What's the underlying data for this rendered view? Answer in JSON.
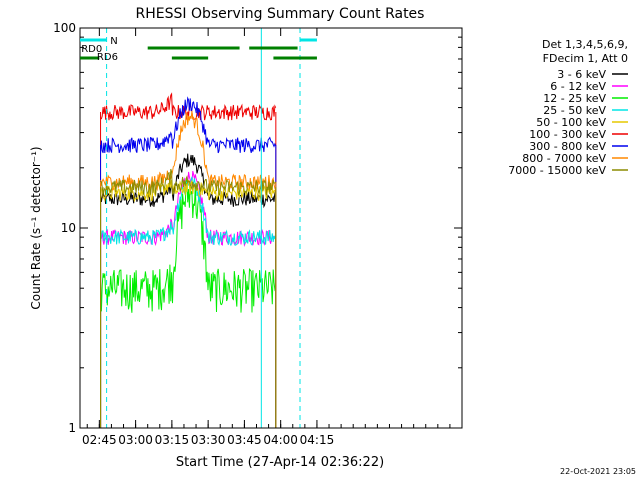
{
  "chart_data": {
    "type": "line",
    "title": "RHESSI Observing Summary Count Rates",
    "xlabel": "Start Time (27-Apr-14 02:36:22)",
    "ylabel": "Count Rate (s⁻¹ detector⁻¹)",
    "y_scale": "log",
    "ylim": [
      1,
      100
    ],
    "xlim_minutes": [
      -8,
      150
    ],
    "x_tick_labels": [
      "02:45",
      "03:00",
      "03:15",
      "03:30",
      "03:45",
      "04:00",
      "04:15"
    ],
    "x_tick_minutes": [
      0,
      15,
      30,
      45,
      60,
      75,
      90
    ],
    "y_tick_labels": [
      "1",
      "10",
      "100"
    ],
    "y_ticks": [
      1,
      10,
      100
    ],
    "grid": false,
    "legend_position": "right",
    "legend_header": [
      "Det 1,3,4,5,6,9,",
      "FDecim 1, Att 0"
    ],
    "flags": [
      {
        "name": "N",
        "color": "#00e5e5"
      },
      {
        "name": "RD0",
        "color": "#008000"
      },
      {
        "name": "RD6",
        "color": "#008000"
      }
    ],
    "series": [
      {
        "name": "3 - 6 keV",
        "color": "#000000",
        "values_at_quiet_and_peak": [
          14,
          22
        ]
      },
      {
        "name": "6 - 12 keV",
        "color": "#ff00ff",
        "values_at_quiet_and_peak": [
          9,
          18
        ]
      },
      {
        "name": "12 - 25 keV",
        "color": "#00ee00",
        "values_at_quiet_and_peak": [
          5,
          15
        ]
      },
      {
        "name": "25 - 50 keV",
        "color": "#00e5e5",
        "values_at_quiet_and_peak": [
          9,
          17
        ]
      },
      {
        "name": "50 - 100 keV",
        "color": "#e5c800",
        "values_at_quiet_and_peak": [
          15,
          16
        ]
      },
      {
        "name": "100 - 300 keV",
        "color": "#ee0000",
        "values_at_quiet_and_peak": [
          38,
          38
        ]
      },
      {
        "name": "300 - 800 keV",
        "color": "#0000ee",
        "values_at_quiet_and_peak": [
          26,
          42
        ]
      },
      {
        "name": "800 - 7000 keV",
        "color": "#ff8800",
        "values_at_quiet_and_peak": [
          17,
          36
        ]
      },
      {
        "name": "7000 - 15000 keV",
        "color": "#8b8b00",
        "values_at_quiet_and_peak": [
          16,
          17
        ]
      }
    ]
  },
  "footer_date": "22-Oct-2021 23:05"
}
